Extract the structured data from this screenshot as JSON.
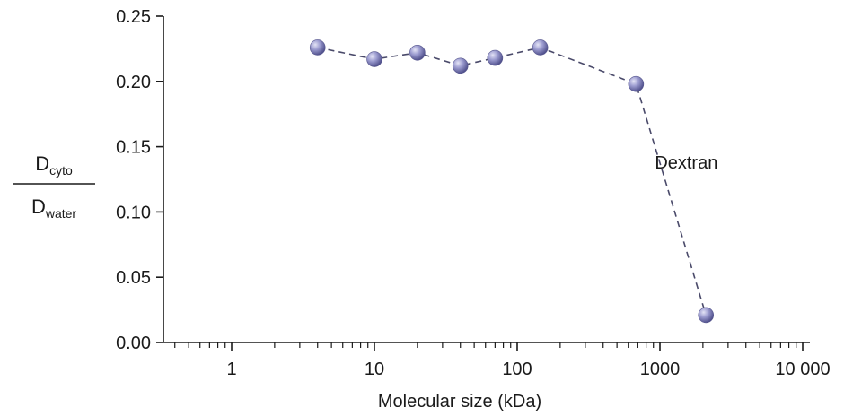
{
  "chart_data": {
    "type": "scatter",
    "x_scale": "log",
    "xlim": [
      0.4,
      13000
    ],
    "ylim": [
      0,
      0.25
    ],
    "grid": false,
    "xlabel": "Molecular size  (kDa)",
    "ylabel": {
      "numerator_main": "D",
      "numerator_sub": "cyto",
      "denominator_main": "D",
      "denominator_sub": "water"
    },
    "x_tick_labels": [
      {
        "value": 1,
        "label": "1"
      },
      {
        "value": 10,
        "label": "10"
      },
      {
        "value": 100,
        "label": "100"
      },
      {
        "value": 1000,
        "label": "1000"
      },
      {
        "value": 10000,
        "label": "10 000"
      }
    ],
    "y_tick_labels": [
      {
        "value": 0.0,
        "label": "0.00"
      },
      {
        "value": 0.05,
        "label": "0.05"
      },
      {
        "value": 0.1,
        "label": "0.10"
      },
      {
        "value": 0.15,
        "label": "0.15"
      },
      {
        "value": 0.2,
        "label": "0.20"
      },
      {
        "value": 0.25,
        "label": "0.25"
      }
    ],
    "series": [
      {
        "name": "Dextran",
        "line_style": "dashed",
        "color": "#8a8ac2",
        "x": [
          4,
          10,
          20,
          40,
          70,
          145,
          680,
          2100
        ],
        "y": [
          0.226,
          0.217,
          0.222,
          0.212,
          0.218,
          0.226,
          0.198,
          0.021
        ]
      }
    ],
    "annotations": [
      {
        "text": "Dextran",
        "x": 1900,
        "y": 0.138
      }
    ]
  }
}
